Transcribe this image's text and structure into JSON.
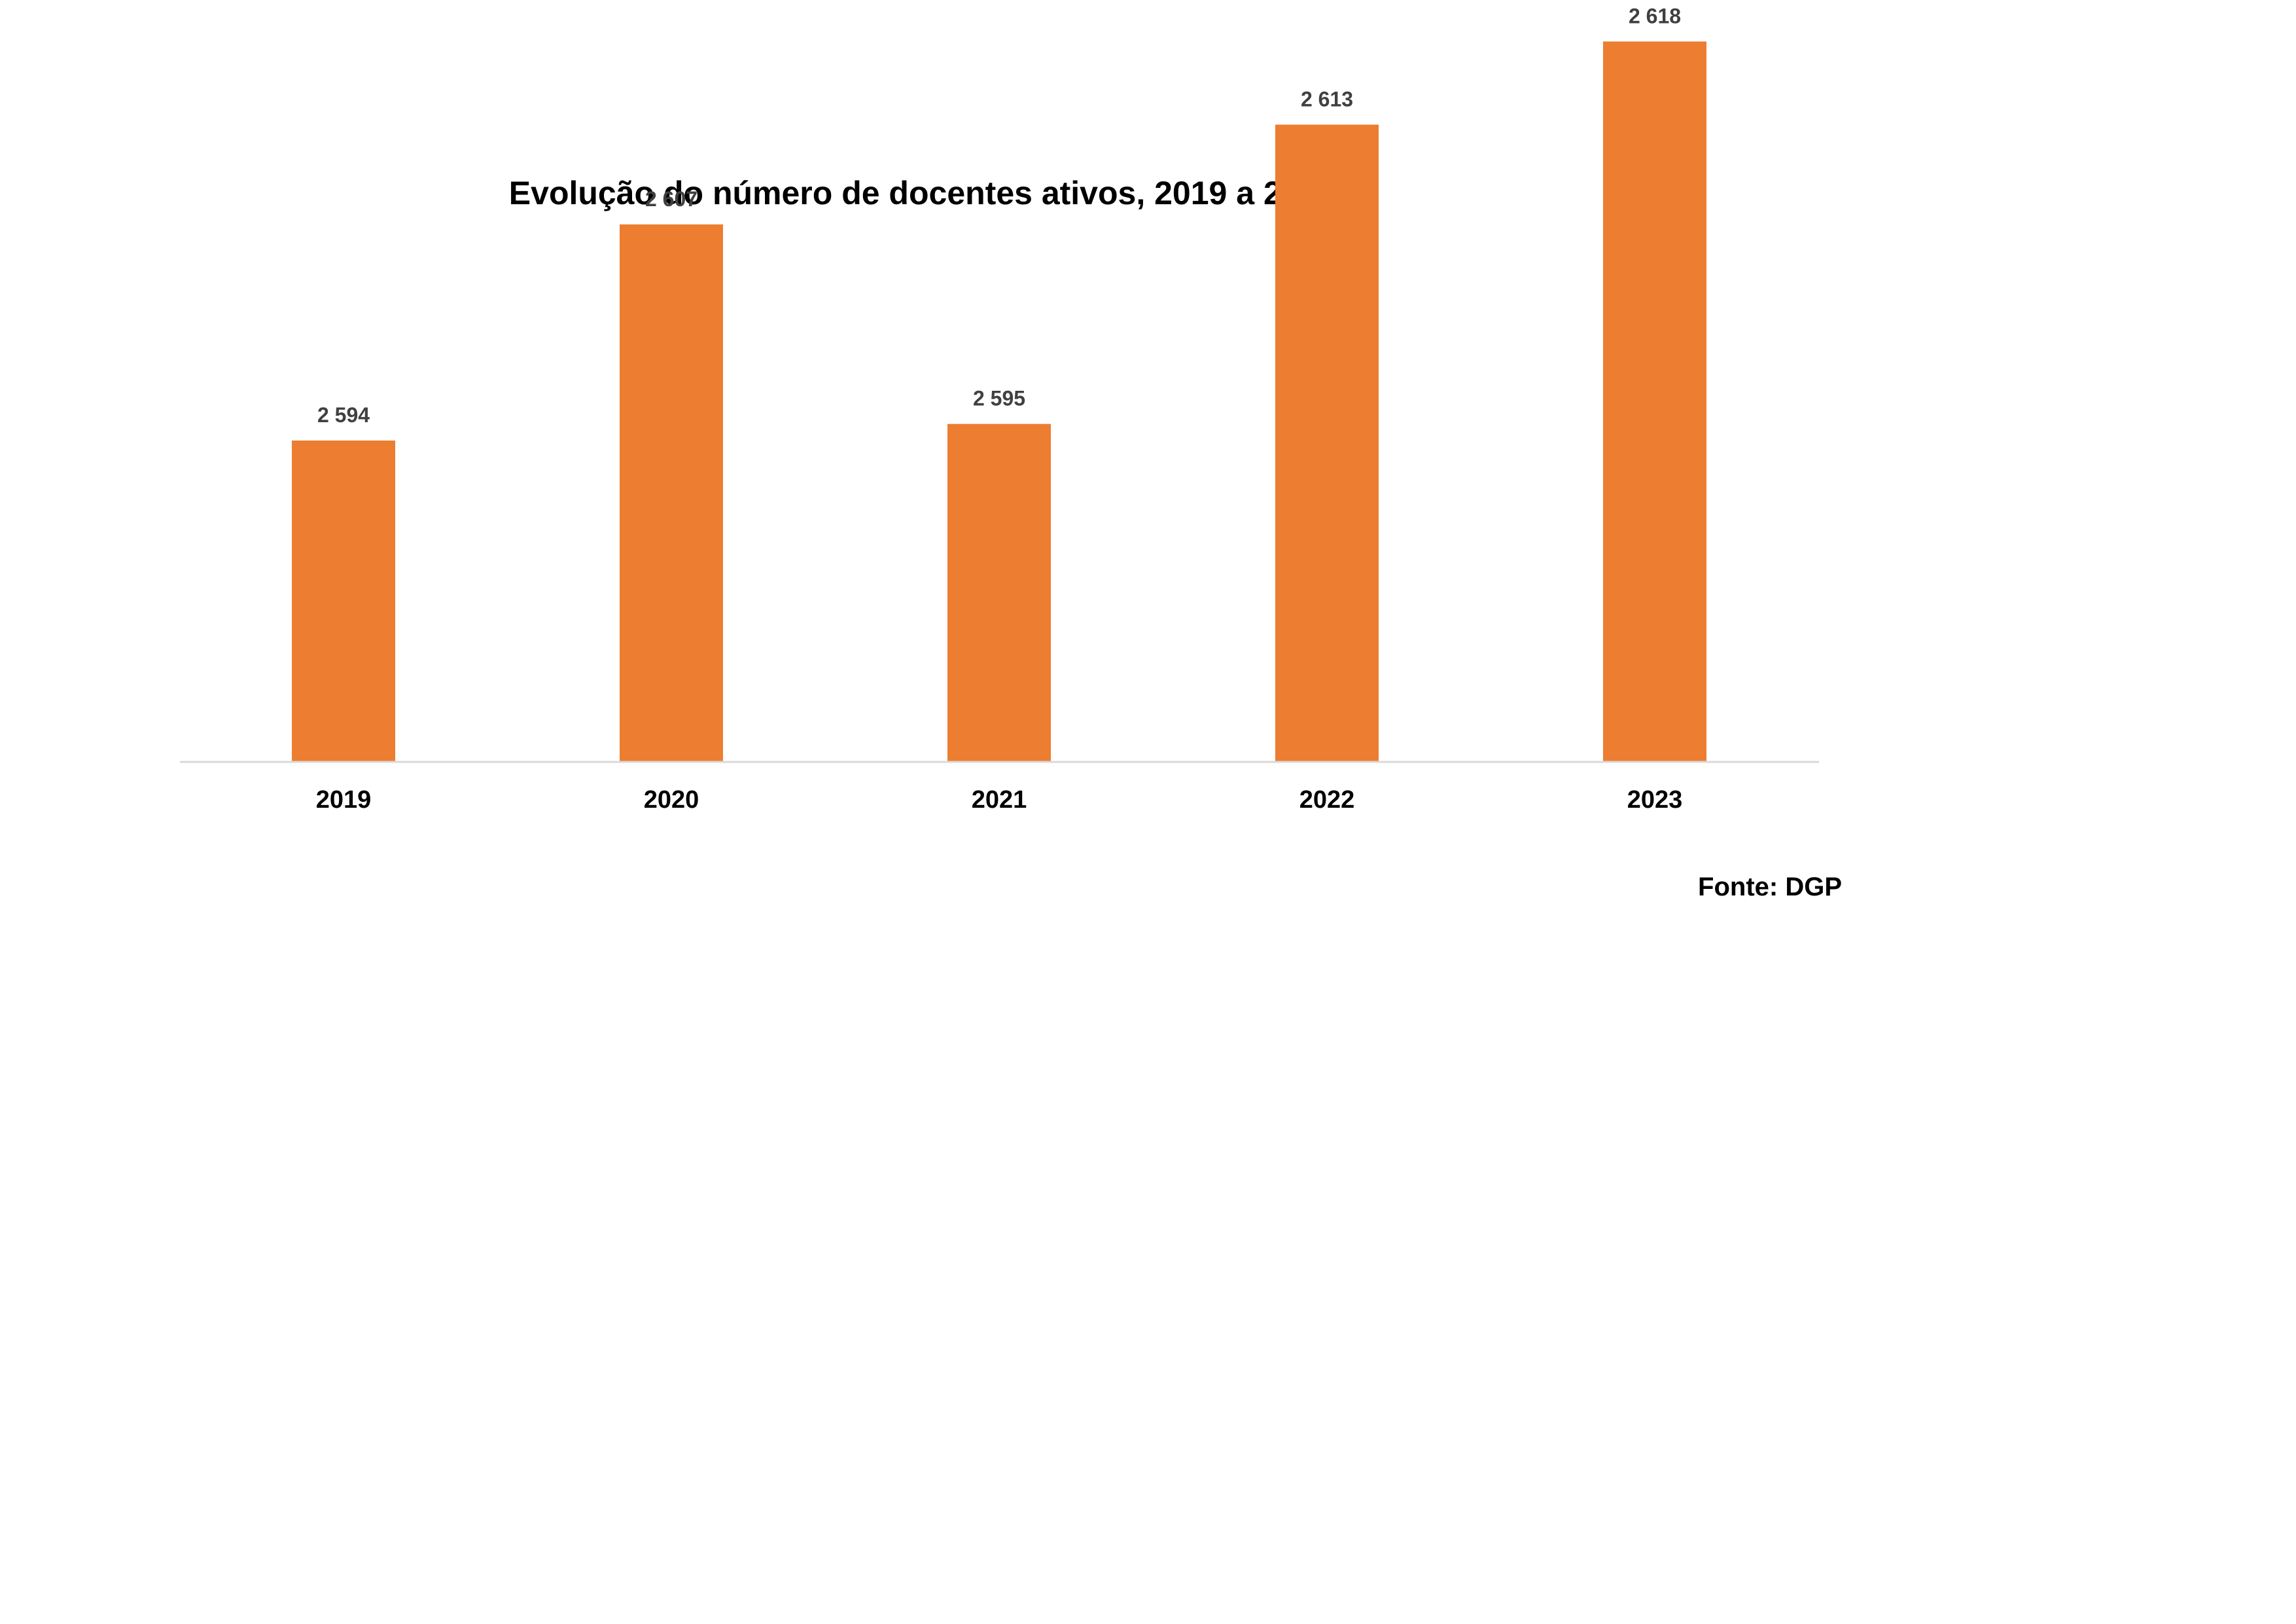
{
  "chart_data": {
    "type": "bar",
    "title": "Evolução do número de docentes ativos, 2019 a 2023",
    "categories": [
      "2019",
      "2020",
      "2021",
      "2022",
      "2023"
    ],
    "values": [
      2594,
      2607,
      2595,
      2613,
      2618
    ],
    "value_labels": [
      "2 594",
      "2 607",
      "2 595",
      "2 613",
      "2 618"
    ],
    "xlabel": "",
    "ylabel": "",
    "grid": false,
    "legend": "none",
    "bar_color": "#ED7D31",
    "axis_color": "#D9D9D9"
  },
  "source_note": "Fonte: DGP"
}
